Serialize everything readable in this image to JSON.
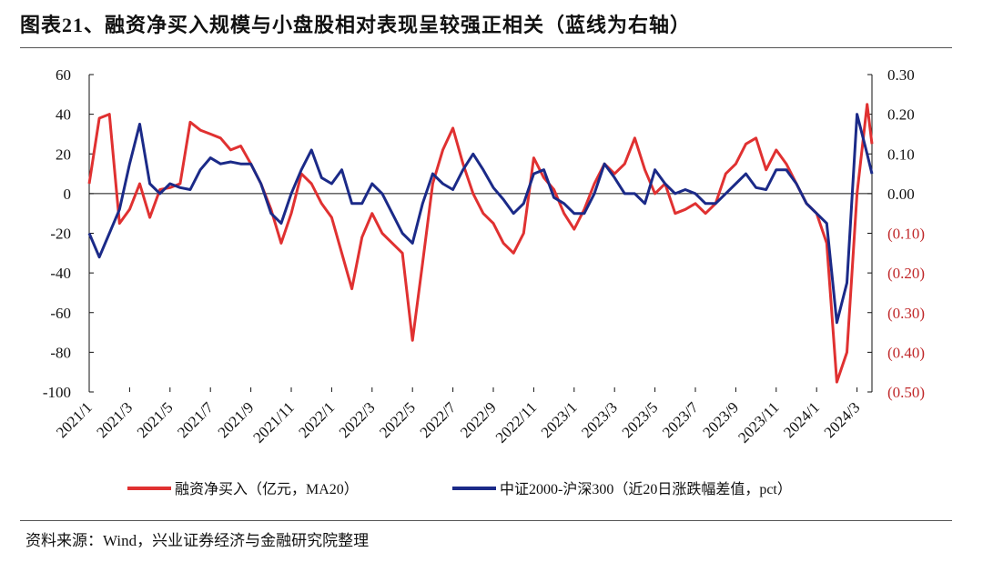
{
  "title": "图表21、融资净买入规模与小盘股相对表现呈较强正相关（蓝线为右轴）",
  "source": "资料来源：Wind，兴业证券经济与金融研究院整理",
  "chart_data": {
    "type": "line",
    "title": "图表21、融资净买入规模与小盘股相对表现呈较强正相关（蓝线为右轴）",
    "colors": {
      "red": "#e03131",
      "blue": "#1b2a88",
      "negative_label": "#c0282a"
    },
    "y_left": {
      "range": [
        -100,
        60
      ],
      "ticks": [
        "60",
        "40",
        "20",
        "0",
        "-20",
        "-40",
        "-60",
        "-80",
        "-100"
      ]
    },
    "y_right": {
      "range": [
        -0.5,
        0.3
      ],
      "ticks": [
        "0.30",
        "0.20",
        "0.10",
        "0.00",
        "(0.10)",
        "(0.20)",
        "(0.30)",
        "(0.40)",
        "(0.50)"
      ]
    },
    "x_ticks": [
      "2021/1",
      "2021/3",
      "2021/5",
      "2021/7",
      "2021/9",
      "2021/11",
      "2022/1",
      "2022/3",
      "2022/5",
      "2022/7",
      "2022/9",
      "2022/11",
      "2023/1",
      "2023/3",
      "2023/5",
      "2023/7",
      "2023/9",
      "2023/11",
      "2024/1",
      "2024/3"
    ],
    "zero_line": true,
    "grid": false,
    "legend_position": "bottom",
    "series": [
      {
        "name": "融资净买入（亿元，MA20）",
        "axis": "left",
        "color": "#e03131",
        "values": [
          5,
          38,
          40,
          -15,
          -8,
          5,
          -12,
          2,
          3,
          5,
          36,
          32,
          30,
          28,
          22,
          24,
          15,
          5,
          -8,
          -25,
          -10,
          10,
          5,
          -5,
          -12,
          -30,
          -48,
          -22,
          -10,
          -20,
          -25,
          -30,
          -74,
          -35,
          5,
          22,
          33,
          15,
          0,
          -10,
          -15,
          -25,
          -30,
          -20,
          18,
          8,
          2,
          -10,
          -18,
          -8,
          5,
          15,
          10,
          15,
          28,
          12,
          0,
          5,
          -10,
          -8,
          -5,
          -10,
          -5,
          10,
          15,
          25,
          28,
          12,
          22,
          15,
          5,
          -5,
          -10,
          -25,
          -95,
          -80,
          0,
          45,
          25
        ]
      },
      {
        "name": "中证2000-沪深300（近20日涨跌幅差值，pct）",
        "axis": "right",
        "color": "#1b2a88",
        "values": [
          -0.1,
          -0.16,
          -0.1,
          -0.04,
          0.075,
          0.175,
          0.025,
          0,
          0.025,
          0.015,
          0.01,
          0.06,
          0.09,
          0.075,
          0.08,
          0.075,
          0.075,
          0.025,
          -0.05,
          -0.075,
          0,
          0.06,
          0.11,
          0.04,
          0.025,
          0.06,
          -0.025,
          -0.025,
          0.025,
          0,
          -0.05,
          -0.1,
          -0.125,
          -0.025,
          0.05,
          0.025,
          0.01,
          0.06,
          0.1,
          0.06,
          0.015,
          -0.015,
          -0.05,
          -0.025,
          0.05,
          0.06,
          -0.01,
          -0.025,
          -0.05,
          -0.05,
          0,
          0.075,
          0.04,
          0,
          0,
          -0.025,
          0.06,
          0.025,
          0,
          0.01,
          0,
          -0.025,
          -0.025,
          0,
          0.025,
          0.05,
          0.015,
          0.01,
          0.06,
          0.06,
          0.025,
          -0.025,
          -0.05,
          -0.075,
          -0.325,
          -0.225,
          0.2,
          0.1,
          0.05
        ]
      }
    ],
    "x_dates_start": "2021-01-01",
    "x_step": "half-month"
  }
}
